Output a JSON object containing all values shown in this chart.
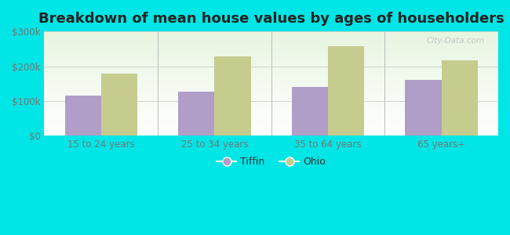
{
  "title": "Breakdown of mean house values by ages of householders",
  "categories": [
    "15 to 24 years",
    "25 to 34 years",
    "35 to 64 years",
    "65 years+"
  ],
  "tiffin_values": [
    115000,
    128000,
    140000,
    160000
  ],
  "ohio_values": [
    178000,
    228000,
    258000,
    218000
  ],
  "tiffin_color": "#b09ec9",
  "ohio_color": "#c5cc8e",
  "background_color": "#00e5e5",
  "ylim": [
    0,
    300000
  ],
  "yticks": [
    0,
    100000,
    200000,
    300000
  ],
  "ytick_labels": [
    "$0",
    "$100k",
    "$200k",
    "$300k"
  ],
  "legend_labels": [
    "Tiffin",
    "Ohio"
  ],
  "bar_width": 0.32,
  "watermark": "City-Data.com",
  "title_fontsize": 13,
  "tick_fontsize": 8.5,
  "legend_fontsize": 9
}
